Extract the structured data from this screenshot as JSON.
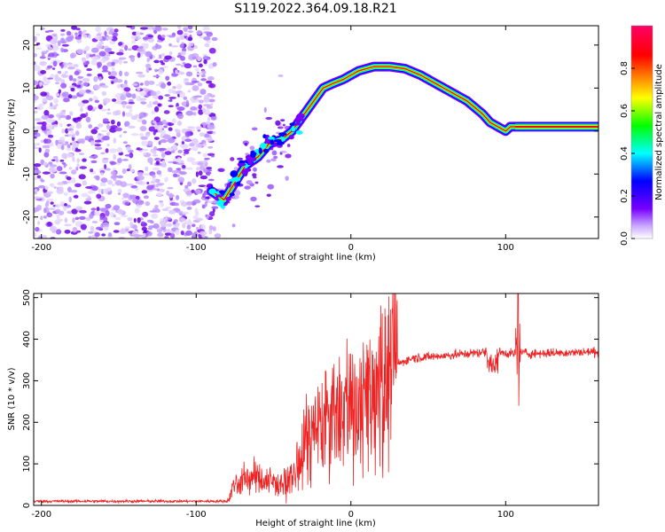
{
  "figure": {
    "title": "S119.2022.364.09.18.R21"
  },
  "chart_data": [
    {
      "type": "heatmap",
      "xlabel": "Height of straight line (km)",
      "ylabel": "Frequency (Hz)",
      "xlim": [
        -205,
        160
      ],
      "ylim": [
        -25,
        24.5
      ],
      "xticks": [
        -200,
        -100,
        0,
        100
      ],
      "yticks": [
        -20,
        -10,
        0,
        10,
        20
      ],
      "colorbar": {
        "label": "Normalized spectral amplitude",
        "range": [
          0,
          1
        ],
        "ticks": [
          "0.0",
          "0.2",
          "0.4",
          "0.6",
          "0.8"
        ],
        "colormap": [
          "#ffffff",
          "#7700ff",
          "#0000ff",
          "#00ffff",
          "#00ff00",
          "#ffff00",
          "#ff0000",
          "#ff0066"
        ]
      },
      "ridge": {
        "x": [
          -90,
          -82,
          -75,
          -68,
          -60,
          -53,
          -45,
          -38,
          -30,
          -24,
          -18,
          -12,
          -5,
          5,
          15,
          25,
          35,
          45,
          55,
          65,
          75,
          85,
          90,
          95,
          100,
          103,
          106,
          160
        ],
        "y": [
          -14,
          -16,
          -12,
          -8,
          -6,
          -3,
          -2,
          0,
          4,
          7,
          10,
          11,
          12,
          14,
          15,
          15,
          14.5,
          13,
          11,
          9,
          7,
          4,
          2,
          1,
          0,
          1,
          1,
          1
        ]
      },
      "noise_region": {
        "x": [
          -205,
          -88
        ],
        "y": [
          -25,
          24.5
        ]
      }
    },
    {
      "type": "line",
      "xlabel": "Height of straight line (km)",
      "ylabel": "SNR (10 * v/v)",
      "xlim": [
        -205,
        160
      ],
      "ylim": [
        0,
        510
      ],
      "xticks": [
        -200,
        -100,
        0,
        100
      ],
      "yticks": [
        0,
        100,
        200,
        300,
        400,
        500
      ],
      "color": "#ee2222",
      "profile": {
        "x": [
          -205,
          -80,
          -75,
          -65,
          -55,
          -45,
          -38,
          -32,
          -25,
          -18,
          -10,
          -5,
          0,
          5,
          10,
          15,
          20,
          25,
          30,
          40,
          60,
          90,
          105,
          110,
          115,
          160
        ],
        "y": [
          10,
          10,
          50,
          70,
          60,
          50,
          60,
          120,
          170,
          190,
          210,
          230,
          230,
          220,
          250,
          270,
          300,
          320,
          340,
          355,
          360,
          370,
          365,
          370,
          365,
          370
        ]
      },
      "spike": {
        "x": 108,
        "y": 510
      }
    }
  ]
}
